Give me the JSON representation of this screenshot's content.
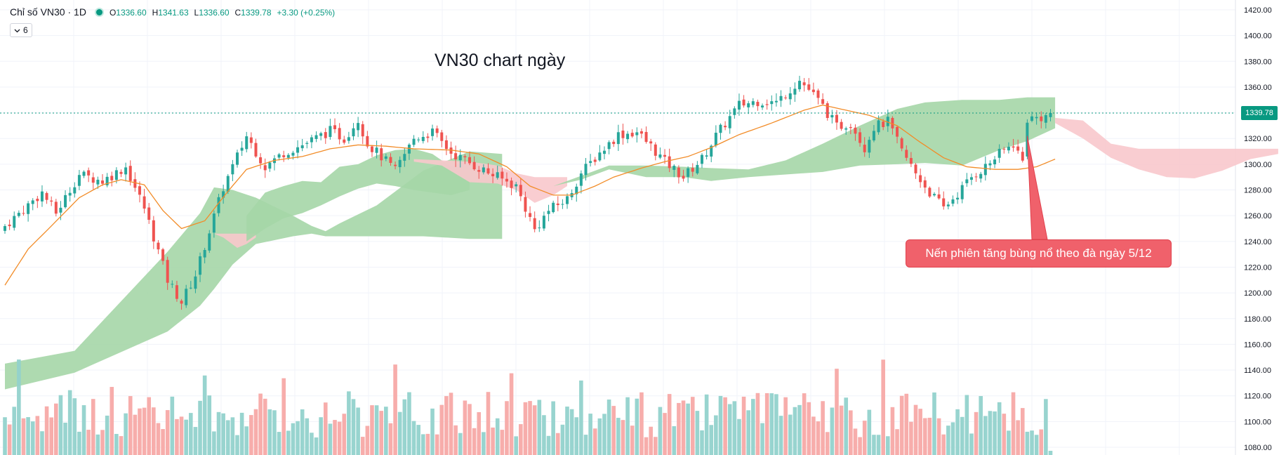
{
  "legend": {
    "symbol": "Chỉ số VN30 · 1D",
    "open_label": "O",
    "open": "1336.60",
    "high_label": "H",
    "high": "1341.63",
    "low_label": "L",
    "low": "1336.60",
    "close_label": "C",
    "close": "1339.78",
    "change": "+3.30 (+0.25%)",
    "indicator_icon": "chevron-down-icon",
    "indicator_count": "6"
  },
  "annotation": {
    "title": "VN30 chart ngày",
    "callout": "Nến phiên tăng bùng nổ theo đà ngày 5/12"
  },
  "colors": {
    "up": "#26a69a",
    "down": "#ef5350",
    "vol_up": "#92d2cc",
    "vol_down": "#f7a9a7",
    "ma": "#f28c28",
    "cloud_up": "#a5d6a7",
    "cloud_down": "#f8c8cc"
  },
  "chart_data": {
    "type": "candlestick",
    "symbol": "VN30",
    "timeframe": "1D",
    "last_price": "1339.78",
    "ylim": [
      1080,
      1420
    ],
    "y_ticks": [
      "1420.00",
      "1400.00",
      "1380.00",
      "1360.00",
      "1340.00",
      "1320.00",
      "1300.00",
      "1280.00",
      "1260.00",
      "1240.00",
      "1220.00",
      "1200.00",
      "1180.00",
      "1160.00",
      "1140.00",
      "1120.00",
      "1100.00",
      "1080.00"
    ],
    "anchors": [
      [
        0,
        1252
      ],
      [
        8,
        1278
      ],
      [
        11,
        1262
      ],
      [
        16,
        1292
      ],
      [
        21,
        1287
      ],
      [
        26,
        1298
      ],
      [
        30,
        1266
      ],
      [
        35,
        1210
      ],
      [
        38,
        1193
      ],
      [
        41,
        1214
      ],
      [
        47,
        1282
      ],
      [
        52,
        1322
      ],
      [
        56,
        1298
      ],
      [
        60,
        1309
      ],
      [
        64,
        1315
      ],
      [
        70,
        1326
      ],
      [
        73,
        1320
      ],
      [
        76,
        1335
      ],
      [
        78,
        1316
      ],
      [
        81,
        1306
      ],
      [
        84,
        1295
      ],
      [
        88,
        1320
      ],
      [
        92,
        1325
      ],
      [
        96,
        1309
      ],
      [
        101,
        1299
      ],
      [
        106,
        1290
      ],
      [
        110,
        1283
      ],
      [
        114,
        1249
      ],
      [
        117,
        1264
      ],
      [
        121,
        1273
      ],
      [
        124,
        1293
      ],
      [
        128,
        1309
      ],
      [
        132,
        1323
      ],
      [
        136,
        1325
      ],
      [
        139,
        1314
      ],
      [
        142,
        1302
      ],
      [
        146,
        1290
      ],
      [
        150,
        1304
      ],
      [
        153,
        1322
      ],
      [
        158,
        1346
      ],
      [
        162,
        1349
      ],
      [
        166,
        1348
      ],
      [
        171,
        1365
      ],
      [
        173,
        1358
      ],
      [
        176,
        1345
      ],
      [
        179,
        1329
      ],
      [
        182,
        1332
      ],
      [
        185,
        1313
      ],
      [
        187,
        1329
      ],
      [
        190,
        1333
      ],
      [
        193,
        1310
      ],
      [
        196,
        1293
      ],
      [
        199,
        1278
      ],
      [
        202,
        1266
      ],
      [
        205,
        1277
      ],
      [
        208,
        1290
      ],
      [
        211,
        1298
      ],
      [
        214,
        1308
      ],
      [
        217,
        1316
      ],
      [
        219,
        1302
      ],
      [
        220,
        1335
      ],
      [
        224,
        1337
      ],
      [
        225,
        1340
      ]
    ],
    "ma_anchors": [
      [
        0,
        1206
      ],
      [
        5,
        1234
      ],
      [
        10,
        1252
      ],
      [
        16,
        1274
      ],
      [
        21,
        1284
      ],
      [
        25,
        1288
      ],
      [
        30,
        1284
      ],
      [
        34,
        1264
      ],
      [
        38,
        1250
      ],
      [
        43,
        1256
      ],
      [
        48,
        1279
      ],
      [
        52,
        1296
      ],
      [
        58,
        1303
      ],
      [
        64,
        1306
      ],
      [
        70,
        1312
      ],
      [
        76,
        1315
      ],
      [
        82,
        1314
      ],
      [
        88,
        1312
      ],
      [
        96,
        1311
      ],
      [
        102,
        1308
      ],
      [
        108,
        1298
      ],
      [
        113,
        1283
      ],
      [
        118,
        1276
      ],
      [
        122,
        1276
      ],
      [
        127,
        1283
      ],
      [
        131,
        1290
      ],
      [
        137,
        1297
      ],
      [
        142,
        1302
      ],
      [
        147,
        1306
      ],
      [
        152,
        1313
      ],
      [
        158,
        1323
      ],
      [
        165,
        1332
      ],
      [
        172,
        1342
      ],
      [
        176,
        1346
      ],
      [
        181,
        1342
      ],
      [
        186,
        1338
      ],
      [
        192,
        1330
      ],
      [
        197,
        1317
      ],
      [
        202,
        1305
      ],
      [
        207,
        1298
      ],
      [
        213,
        1296
      ],
      [
        218,
        1296
      ],
      [
        222,
        1298
      ],
      [
        226,
        1304
      ]
    ],
    "cloud_segments": [
      {
        "color": "green",
        "x": [
          0,
          15,
          35,
          42,
          45,
          49,
          54,
          62,
          66,
          69,
          72,
          80,
          90,
          100,
          107
        ],
        "top": [
          1145,
          1155,
          1232,
          1262,
          1282,
          1280,
          1274,
          1260,
          1252,
          1248,
          1254,
          1268,
          1295,
          1310,
          1308
        ],
        "bottom": [
          1125,
          1138,
          1170,
          1190,
          1203,
          1222,
          1238,
          1244,
          1246,
          1244,
          1244,
          1244,
          1244,
          1242,
          1242
        ]
      },
      {
        "color": "pink",
        "x": [
          45,
          47,
          50,
          52,
          54
        ],
        "top": [
          1246,
          1246,
          1246,
          1246,
          1246
        ],
        "bottom": [
          1246,
          1243,
          1235,
          1238,
          1243
        ]
      },
      {
        "color": "green",
        "x": [
          52,
          56,
          60,
          64,
          68,
          72,
          76,
          80,
          84,
          88,
          92,
          96,
          100
        ],
        "top": [
          1260,
          1278,
          1283,
          1287,
          1286,
          1298,
          1300,
          1307,
          1311,
          1312,
          1308,
          1298,
          1304
        ],
        "bottom": [
          1240,
          1250,
          1258,
          1262,
          1268,
          1275,
          1281,
          1285,
          1283,
          1280,
          1278,
          1276,
          1280
        ]
      },
      {
        "color": "pink",
        "x": [
          88,
          94,
          100,
          106,
          110,
          114,
          118,
          121
        ],
        "top": [
          1304,
          1303,
          1302,
          1299,
          1293,
          1290,
          1290,
          1290
        ],
        "bottom": [
          1302,
          1299,
          1286,
          1285,
          1280,
          1270,
          1276,
          1283
        ]
      },
      {
        "color": "green",
        "x": [
          118,
          124,
          130,
          138,
          146,
          152,
          160,
          168,
          176,
          184,
          192,
          198,
          206,
          214,
          220,
          226
        ],
        "top": [
          1283,
          1291,
          1299,
          1299,
          1298,
          1297,
          1296,
          1303,
          1316,
          1330,
          1343,
          1348,
          1350,
          1350,
          1352,
          1352
        ],
        "bottom": [
          1283,
          1288,
          1296,
          1290,
          1290,
          1287,
          1290,
          1292,
          1294,
          1299,
          1300,
          1301,
          1299,
          1311,
          1318,
          1328
        ]
      },
      {
        "color": "pink",
        "x": [
          226,
          232,
          238,
          244,
          250,
          256,
          262,
          268,
          274
        ],
        "top": [
          1336,
          1334,
          1316,
          1312,
          1312,
          1312,
          1312,
          1312,
          1312
        ],
        "bottom": [
          1332,
          1320,
          1305,
          1296,
          1290,
          1289,
          1295,
          1304,
          1308
        ]
      }
    ],
    "callout_target_bar": 220
  }
}
